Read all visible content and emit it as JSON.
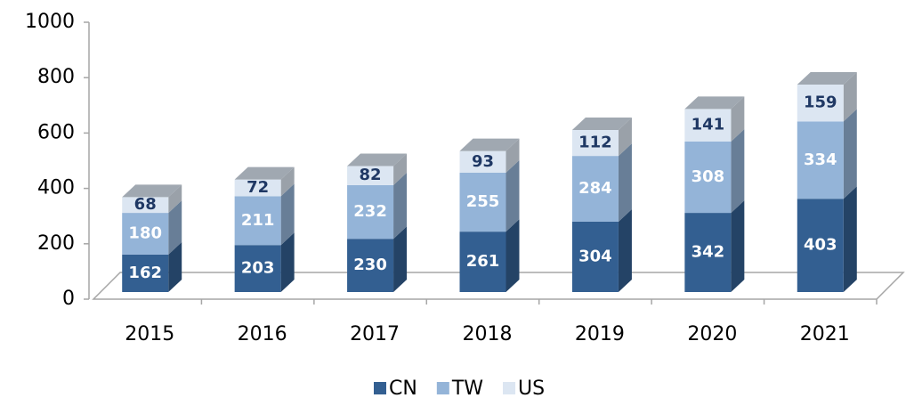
{
  "chart_data": {
    "type": "bar3d_stacked",
    "categories": [
      "2015",
      "2016",
      "2017",
      "2018",
      "2019",
      "2020",
      "2021"
    ],
    "series": [
      {
        "name": "CN",
        "color": "#335f91",
        "values": [
          162,
          203,
          230,
          261,
          304,
          342,
          403
        ]
      },
      {
        "name": "TW",
        "color": "#94b4d8",
        "values": [
          180,
          211,
          232,
          255,
          284,
          308,
          334
        ]
      },
      {
        "name": "US",
        "color": "#dce6f2",
        "values": [
          68,
          72,
          82,
          93,
          112,
          141,
          159
        ]
      }
    ],
    "ylim": [
      0,
      1000
    ],
    "yticks": [
      0,
      200,
      400,
      600,
      800,
      1000
    ],
    "legend": "bottom"
  }
}
